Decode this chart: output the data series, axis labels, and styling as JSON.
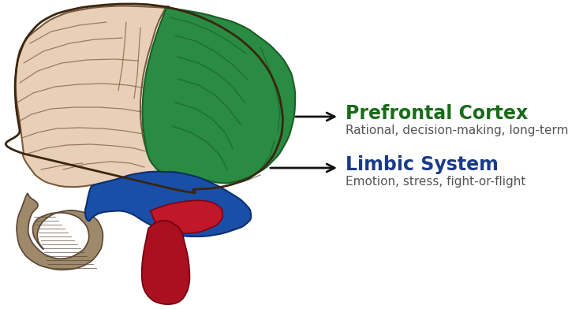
{
  "background_color": "#ffffff",
  "prefrontal_label": "Prefrontal Cortex",
  "prefrontal_sublabel": "Rational, decision-making, long-term",
  "prefrontal_color": "#1a6b1a",
  "limbic_label": "Limbic System",
  "limbic_sublabel": "Emotion, stress, fight-or-flight",
  "limbic_color": "#1a3a8a",
  "sublabel_color": "#555555",
  "arrow_color": "#111111"
}
